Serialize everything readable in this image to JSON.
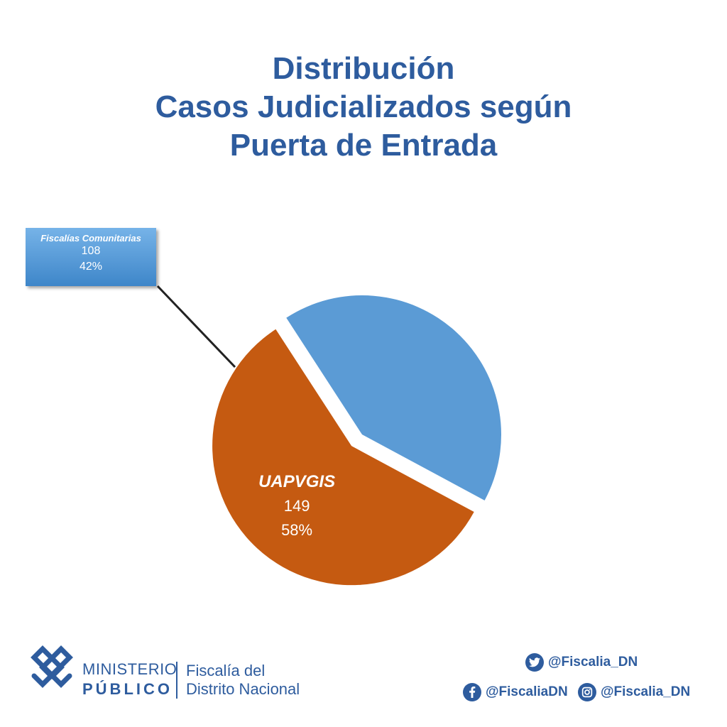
{
  "title": {
    "line1": "Distribución",
    "line2": "Casos Judicializados según",
    "line3": "Puerta de Entrada"
  },
  "chart_data": {
    "type": "pie",
    "title": "Distribución Casos Judicializados según Puerta de Entrada",
    "slices": [
      {
        "label": "Fiscalías Comunitarias",
        "value": 108,
        "percent": "42%",
        "color": "#5b9bd5",
        "exploded": false
      },
      {
        "label": "UAPVGIS",
        "value": 149,
        "percent": "58%",
        "color": "#c55a11",
        "exploded": true
      }
    ]
  },
  "footer": {
    "logo_line1": "MINISTERIO",
    "logo_line2": "PÚBLICO",
    "org_line1": "Fiscalía del",
    "org_line2": "Distrito Nacional",
    "twitter": "@Fiscalia_DN",
    "facebook": "@FiscaliaDN",
    "instagram": "@Fiscalia_DN",
    "brand_color": "#2e5c9e",
    "icons": [
      "twitter-icon",
      "facebook-icon",
      "instagram-icon",
      "ministerio-logo-icon"
    ]
  }
}
